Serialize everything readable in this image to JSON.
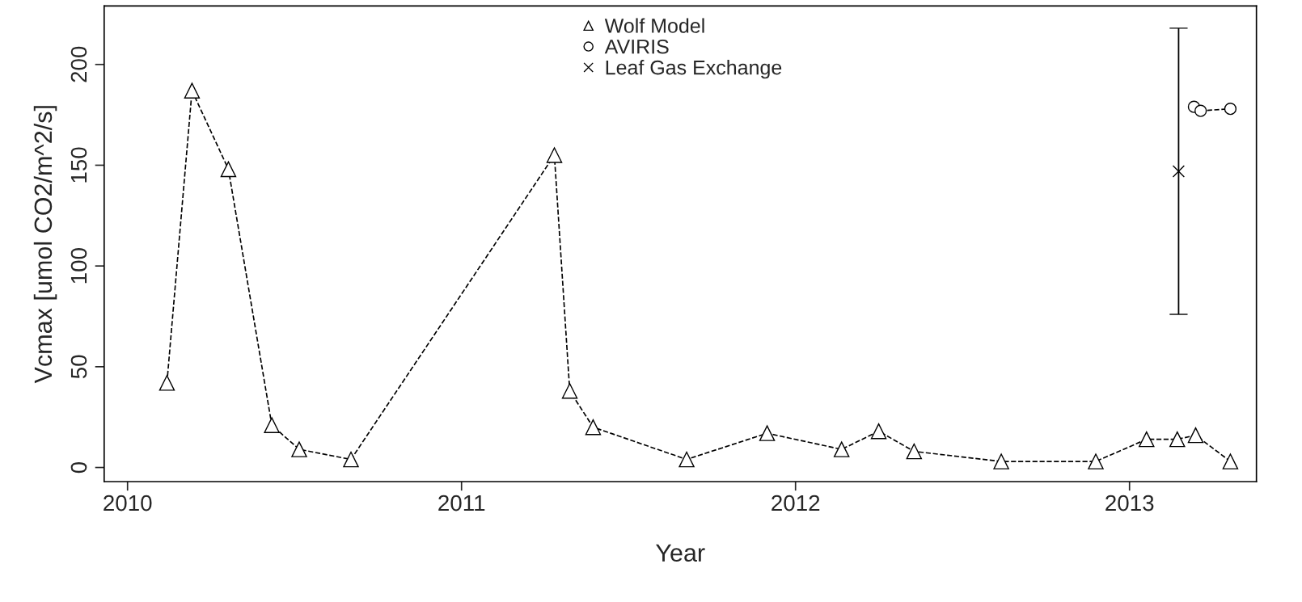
{
  "chart_data": {
    "type": "line",
    "xlabel": "Year",
    "ylabel": "Vcmax [umol CO2/m^2/s]",
    "xlim": [
      2009.93,
      2013.38
    ],
    "xticks": [
      2010,
      2011,
      2012,
      2013
    ],
    "ylim": [
      -7,
      229
    ],
    "yticks": [
      0,
      50,
      100,
      150,
      200
    ],
    "grid": false,
    "legend": "top",
    "series": [
      {
        "name": "Wolf Model",
        "color": "#000000",
        "marker": "triangle",
        "line_style": "dashed",
        "x": [
          2010.118,
          2010.193,
          2010.302,
          2010.432,
          2010.514,
          2010.669,
          2011.278,
          2011.324,
          2011.394,
          2011.674,
          2011.915,
          2012.138,
          2012.249,
          2012.355,
          2012.616,
          2012.899,
          2013.051,
          2013.143,
          2013.198,
          2013.302
        ],
        "values": [
          42,
          187,
          148,
          21,
          9,
          4,
          155,
          38,
          20,
          4,
          17,
          9,
          18,
          8,
          3,
          3,
          14,
          14,
          16,
          3
        ]
      },
      {
        "name": "AVIRIS",
        "color": "#000000",
        "marker": "circle",
        "line_style": "dashed",
        "x": [
          2013.193,
          2013.213,
          2013.302
        ],
        "values": [
          179,
          177,
          178
        ]
      },
      {
        "name": "Leaf Gas Exchange",
        "type": "scatter",
        "color": "#000000",
        "marker": "cross",
        "x": [
          2013.147
        ],
        "values": [
          147
        ],
        "errors": [
          71
        ]
      }
    ]
  }
}
